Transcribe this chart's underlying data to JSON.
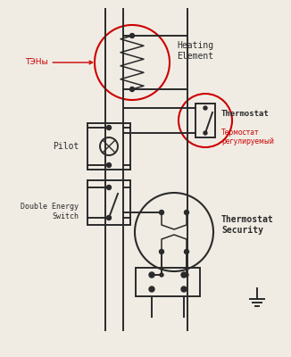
{
  "bg_color": "#f0ece4",
  "line_color": "#2a2a2a",
  "red_color": "#cc0000",
  "labels": {
    "heating_element": "Heating\nElement",
    "thermostat": "Thermostat",
    "thermostat_ru": "Термостат\nрегулируемый",
    "pilot": "Pilot",
    "double_energy": "Double Energy\nSwitch",
    "thermostat_security": "Thermostat\nSecurity",
    "ten": "ТЭНы"
  }
}
